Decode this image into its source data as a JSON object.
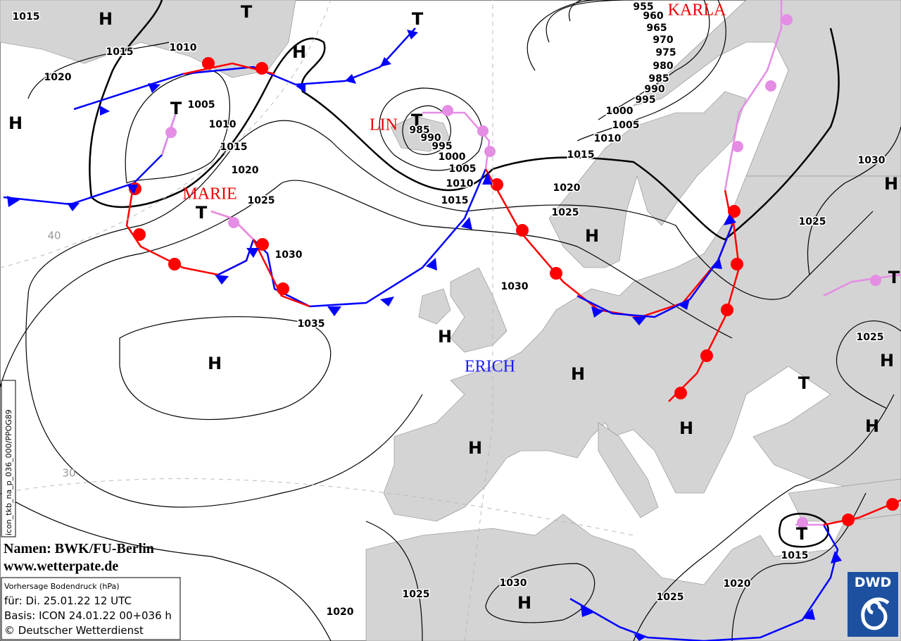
{
  "map_labels": [
    "1015",
    "H",
    "T",
    "1015",
    "1010",
    "H",
    "T",
    "1020",
    "H",
    "T",
    "1005",
    "1010",
    "1015",
    "1020",
    "1025",
    "T",
    "1030",
    "1035",
    "H",
    "LIN",
    "T",
    "985",
    "990",
    "995",
    "1000",
    "1005",
    "1010",
    "1015",
    "955",
    "960",
    "965",
    "970",
    "975",
    "980",
    "985",
    "990",
    "995",
    "1000",
    "1005",
    "1010",
    "KARLA",
    "1015",
    "1020",
    "1025",
    "H",
    "1030",
    "H",
    "ERICH",
    "H",
    "H",
    "H",
    "1030",
    "H",
    "1025",
    "T",
    "1025",
    "H",
    "T",
    "H",
    "T",
    "1015",
    "1020",
    "1025",
    "1030",
    "H",
    "1025",
    "1020",
    "MARIE"
  ],
  "grid_labels": [
    "40",
    "30"
  ],
  "product_code": "icon_tkb_na_p_036_000/PPOG89",
  "credits": [
    "Namen: BWK/FU-Berlin",
    "www.wetterpate.de"
  ],
  "info": [
    "Vorhersage Bodendruck (hPa)",
    "für:  Di. 25.01.22  12 UTC",
    "Basis: ICON  24.01.22 00+036 h",
    "© Deutscher Wetterdienst"
  ],
  "logo": "DWD"
}
